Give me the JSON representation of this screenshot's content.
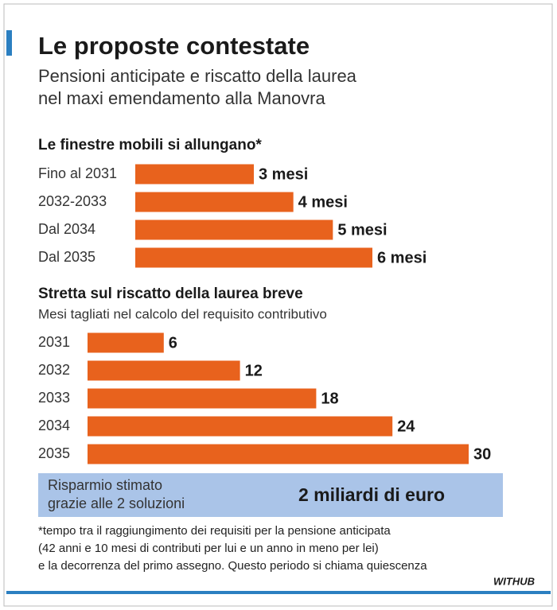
{
  "header": {
    "title": "Le proposte contestate",
    "subtitle": [
      "Pensioni anticipate e riscatto della laurea",
      "nel maxi emendamento alla Manovra"
    ]
  },
  "chart_data": [
    {
      "type": "bar",
      "orientation": "horizontal",
      "title": "Le finestre mobili si allungano*",
      "categories": [
        "Fino al 2031",
        "2032-2033",
        "Dal 2034",
        "Dal 2035"
      ],
      "values": [
        3,
        4,
        5,
        6
      ],
      "value_labels": [
        "3 mesi",
        "4 mesi",
        "5 mesi",
        "6 mesi"
      ],
      "color": "#e8621d"
    },
    {
      "type": "bar",
      "orientation": "horizontal",
      "title": "Stretta sul riscatto della laurea breve",
      "subtitle": "Mesi tagliati nel calcolo del requisito contributivo",
      "categories": [
        "2031",
        "2032",
        "2033",
        "2034",
        "2035"
      ],
      "values": [
        6,
        12,
        18,
        24,
        30
      ],
      "color": "#e8621d"
    }
  ],
  "callout": {
    "label": [
      "Risparmio stimato",
      "grazie alle 2 soluzioni"
    ],
    "value": "2 miliardi di euro"
  },
  "footnote": [
    "*tempo tra il raggiungimento dei requisiti per la pensione anticipata",
    "(42 anni e 10 mesi di contributi per lui e un anno in meno per lei)",
    "e la decorrenza del primo assegno. Questo periodo si chiama quiescenza"
  ],
  "source": "WITHUB"
}
